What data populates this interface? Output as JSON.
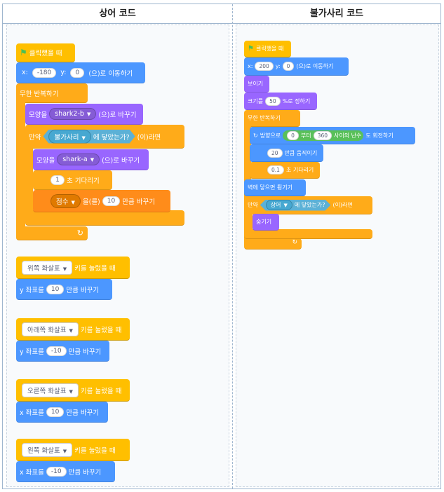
{
  "headers": {
    "shark": "상어 코드",
    "jellyfish": "불가사리 코드"
  },
  "shark": {
    "hat_label": "클릭했을 때",
    "goto_x_label": "x:",
    "goto_x": "-180",
    "goto_y_label": "y:",
    "goto_y": "0",
    "goto_suffix": "(으)로 이동하기",
    "forever_label": "무한 반복하기",
    "costume1_prefix": "모양을",
    "costume1_value": "shark2-b",
    "costume1_suffix": "(으)로 바꾸기",
    "if_label": "만약",
    "touching_target": "불가사리",
    "touching_suffix": "에 닿았는가?",
    "if_suffix": "(이)라면",
    "costume2_prefix": "모양을",
    "costume2_value": "shark-a",
    "costume2_suffix": "(으)로 바꾸기",
    "wait_value": "1",
    "wait_suffix": "초 기다리기",
    "score_var": "점수",
    "score_mid": "을(를)",
    "score_value": "10",
    "score_suffix": "만큼 바꾸기",
    "key_up": {
      "key": "위쪽 화살표",
      "hat_suffix": "키를 눌렀을 때",
      "axis": "y 좌표를",
      "value": "10",
      "suffix": "만큼 바꾸기"
    },
    "key_down": {
      "key": "아래쪽 화살표",
      "hat_suffix": "키를 눌렀을 때",
      "axis": "y 좌표를",
      "value": "-10",
      "suffix": "만큼 바꾸기"
    },
    "key_right": {
      "key": "오른쪽 화살표",
      "hat_suffix": "키를 눌렀을 때",
      "axis": "x 좌표를",
      "value": "10",
      "suffix": "만큼 바꾸기"
    },
    "key_left": {
      "key": "왼쪽 화살표",
      "hat_suffix": "키를 눌렀을 때",
      "axis": "x 좌표를",
      "value": "-10",
      "suffix": "만큼 바꾸기"
    }
  },
  "jellyfish": {
    "hat_label": "클릭했을 때",
    "goto_x_label": "x:",
    "goto_x": "200",
    "goto_y_label": "y:",
    "goto_y": "0",
    "goto_suffix": "(으)로 이동하기",
    "show_label": "보이기",
    "size_prefix": "크기를",
    "size_value": "50",
    "size_suffix": "%로 정하기",
    "forever_label": "무한 반복하기",
    "turn_prefix": "방향으로",
    "rand_from": "0",
    "rand_mid": "부터",
    "rand_to": "360",
    "rand_suffix": "사이의 난수",
    "turn_suffix": "도 회전하기",
    "move_value": "20",
    "move_suffix": "만큼 움직이기",
    "wait_value": "0.1",
    "wait_suffix": "초 기다리기",
    "bounce_label": "벽에 닿으면 튕기기",
    "if_label": "만약",
    "touching_target": "상어",
    "touching_suffix": "에 닿았는가?",
    "if_suffix": "(이)라면",
    "hide_label": "숨기기"
  },
  "colors": {
    "event": "#FFBF00",
    "control": "#FFAB19",
    "motion": "#4C97FF",
    "looks": "#9966FF",
    "sensing": "#5CB1D6",
    "variables": "#FF8C1A",
    "frame": "#9fb6cf"
  },
  "icons": {
    "green_flag": "green-flag-icon",
    "loop_arrow": "loop-arrow-icon",
    "turn": "turn-right-icon",
    "dropdown": "chevron-down-icon"
  }
}
